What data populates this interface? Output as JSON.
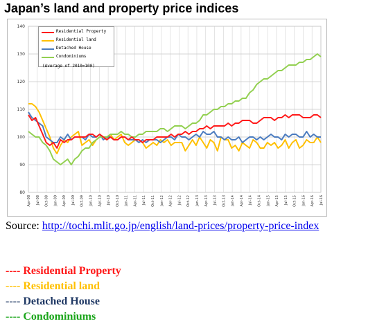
{
  "title": "Japan’s land and property price indices",
  "source": {
    "label": "Source:",
    "url_text": "http://tochi.mlit.go.jp/english/land-prices/property-price-index"
  },
  "key": [
    {
      "dashes": "----",
      "label": "Residential Property",
      "color": "#ff1a1a"
    },
    {
      "dashes": "----",
      "label": "Residential land",
      "color": "#ffc000"
    },
    {
      "dashes": "----",
      "label": "Detached House",
      "color": "#1f3864"
    },
    {
      "dashes": "----",
      "label": "Condominiums",
      "color": "#1aa51a"
    }
  ],
  "chart_data": {
    "type": "line",
    "ylim": [
      80,
      140
    ],
    "yticks": [
      80,
      90,
      100,
      110,
      120,
      130,
      140
    ],
    "grid": true,
    "legend_position": "top-left",
    "legend_note": "(Average of 2010=100)",
    "x_tick_labels": [
      "Apr-08",
      "Jul-08",
      "Oct-08",
      "Jan-09",
      "Apr-09",
      "Jul-09",
      "Oct-09",
      "Jan-10",
      "Apr-10",
      "Jul-10",
      "Oct-10",
      "Jan-11",
      "Apr-11",
      "Jul-11",
      "Oct-11",
      "Jan-12",
      "Apr-12",
      "Jul-12",
      "Oct-12",
      "Jan-13",
      "Apr-13",
      "Jul-13",
      "Oct-13",
      "Jan-14",
      "Apr-14",
      "Jul-14",
      "Oct-14",
      "Jan-15",
      "Apr-15",
      "Jul-15",
      "Oct-15",
      "Jan-16",
      "Apr-16",
      "Jul-16"
    ],
    "series": [
      {
        "name": "Residential Property",
        "color": "#ff1a1a",
        "values": [
          108,
          106,
          107,
          104,
          101,
          98,
          97,
          98,
          96,
          99,
          98,
          99,
          99,
          100,
          100,
          100,
          100,
          101,
          101,
          100,
          101,
          100,
          99,
          100,
          99,
          99,
          100,
          100,
          99,
          100,
          99,
          99,
          98,
          99,
          99,
          99,
          100,
          100,
          100,
          100,
          101,
          100,
          101,
          101,
          102,
          101,
          102,
          102,
          103,
          103,
          104,
          103,
          104,
          104,
          104,
          104,
          105,
          104,
          105,
          105,
          106,
          106,
          106,
          105,
          105,
          106,
          107,
          107,
          107,
          106,
          107,
          107,
          108,
          107,
          108,
          108,
          108,
          107,
          107,
          107,
          108,
          108,
          107
        ]
      },
      {
        "name": "Residential land",
        "color": "#ffc000",
        "values": [
          112,
          112,
          111,
          109,
          106,
          103,
          100,
          96,
          94,
          97,
          99,
          98,
          100,
          101,
          102,
          97,
          98,
          99,
          97,
          99,
          100,
          100,
          99,
          101,
          99,
          100,
          101,
          98,
          97,
          98,
          99,
          99,
          98,
          96,
          97,
          98,
          97,
          99,
          98,
          99,
          97,
          98,
          98,
          98,
          95,
          97,
          99,
          97,
          100,
          98,
          96,
          99,
          98,
          95,
          100,
          99,
          99,
          96,
          97,
          95,
          98,
          97,
          96,
          99,
          98,
          96,
          96,
          98,
          97,
          98,
          96,
          97,
          99,
          96,
          98,
          99,
          96,
          97,
          99,
          98,
          98,
          100,
          98
        ]
      },
      {
        "name": "Detached House",
        "color": "#4a7bbf",
        "values": [
          109,
          107,
          106,
          105,
          104,
          100,
          99,
          98,
          98,
          100,
          99,
          101,
          99,
          100,
          100,
          100,
          99,
          101,
          100,
          100,
          101,
          99,
          100,
          100,
          99,
          99,
          100,
          100,
          99,
          99,
          99,
          98,
          99,
          98,
          99,
          99,
          99,
          98,
          99,
          100,
          100,
          99,
          101,
          100,
          100,
          99,
          100,
          101,
          100,
          102,
          101,
          101,
          102,
          100,
          100,
          99,
          100,
          99,
          99,
          100,
          98,
          99,
          100,
          100,
          99,
          100,
          99,
          100,
          101,
          100,
          100,
          99,
          101,
          100,
          101,
          101,
          100,
          100,
          102,
          100,
          101,
          100,
          100
        ]
      },
      {
        "name": "Condominiums",
        "color": "#92d050",
        "values": [
          102,
          101,
          100,
          100,
          98,
          97,
          95,
          92,
          91,
          90,
          91,
          92,
          90,
          92,
          93,
          95,
          96,
          96,
          98,
          99,
          100,
          100,
          100,
          101,
          101,
          101,
          102,
          101,
          101,
          100,
          100,
          101,
          101,
          102,
          102,
          102,
          102,
          103,
          103,
          102,
          103,
          104,
          104,
          104,
          103,
          104,
          105,
          105,
          106,
          108,
          108,
          109,
          110,
          110,
          111,
          111,
          112,
          112,
          113,
          113,
          114,
          114,
          116,
          117,
          119,
          120,
          121,
          121,
          122,
          123,
          124,
          124,
          125,
          126,
          126,
          126,
          127,
          127,
          128,
          128,
          129,
          130,
          129
        ]
      }
    ]
  }
}
